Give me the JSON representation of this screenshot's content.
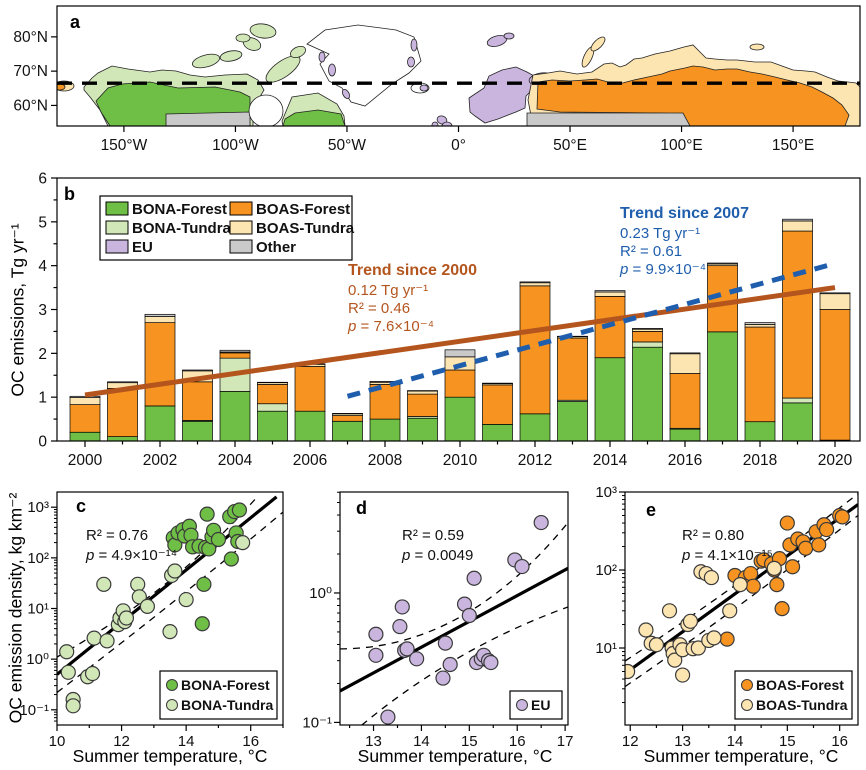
{
  "figure": {
    "panel_labels": {
      "a": "a",
      "b": "b",
      "c": "c",
      "d": "d",
      "e": "e"
    }
  },
  "colors": {
    "bona_forest": "#6FBE45",
    "bona_tundra": "#D2E7B8",
    "eu": "#C9B5DD",
    "boas_forest": "#F79421",
    "boas_tundra": "#FDE5B2",
    "other": "#C9C9C9",
    "trend_2000": "#B4551E",
    "trend_2007": "#1F5EAD"
  },
  "panel_a": {
    "lon_range": [
      -180,
      180
    ],
    "lat_range": [
      54,
      89
    ],
    "dashed_line_lat": 66.5,
    "lon_ticks": [
      {
        "v": -150,
        "label": "150°W"
      },
      {
        "v": -100,
        "label": "100°W"
      },
      {
        "v": -50,
        "label": "50°W"
      },
      {
        "v": 0,
        "label": "0°"
      },
      {
        "v": 50,
        "label": "50°E"
      },
      {
        "v": 100,
        "label": "100°E"
      },
      {
        "v": 150,
        "label": "150°E"
      }
    ],
    "lat_ticks": [
      {
        "v": 80,
        "label": "80°N"
      },
      {
        "v": 70,
        "label": "70°N"
      },
      {
        "v": 60,
        "label": "60°N"
      }
    ],
    "regions": [
      "BONA-Forest",
      "BONA-Tundra",
      "EU",
      "BOAS-Forest",
      "BOAS-Tundra",
      "Other"
    ]
  },
  "chart_data": [
    {
      "id": "b",
      "type": "bar",
      "stacked": true,
      "ylabel": "OC emissions, Tg yr⁻¹",
      "ylim": [
        0,
        6
      ],
      "yticks": [
        0,
        1,
        2,
        3,
        4,
        5,
        6
      ],
      "xticks": [
        2000,
        2002,
        2004,
        2006,
        2008,
        2010,
        2012,
        2014,
        2016,
        2018,
        2020
      ],
      "categories": [
        2000,
        2001,
        2002,
        2003,
        2004,
        2005,
        2006,
        2007,
        2008,
        2009,
        2010,
        2011,
        2012,
        2013,
        2014,
        2015,
        2016,
        2017,
        2018,
        2019,
        2020
      ],
      "series": [
        {
          "name": "BONA-Forest",
          "color_key": "bona_forest",
          "values": [
            0.2,
            0.1,
            0.8,
            0.45,
            1.13,
            0.68,
            0.68,
            0.45,
            0.5,
            0.52,
            1.0,
            0.38,
            0.62,
            0.9,
            1.9,
            2.14,
            0.27,
            2.49,
            0.44,
            0.87,
            0.02
          ]
        },
        {
          "name": "BONA-Tundra",
          "color_key": "bona_tundra",
          "values": [
            0,
            0,
            0,
            0.02,
            0.76,
            0.17,
            0,
            0,
            0,
            0.04,
            0,
            0,
            0,
            0.03,
            0,
            0.12,
            0.02,
            0,
            0,
            0.11,
            0
          ]
        },
        {
          "name": "EU",
          "color_key": "eu",
          "values": [
            0,
            0,
            0,
            0,
            0,
            0,
            0,
            0,
            0,
            0,
            0,
            0,
            0,
            0,
            0,
            0,
            0,
            0,
            0,
            0,
            0
          ]
        },
        {
          "name": "BOAS-Forest",
          "color_key": "boas_forest",
          "values": [
            0.63,
            1.1,
            1.9,
            0.88,
            0.12,
            0.44,
            1.02,
            0.13,
            0.79,
            0.51,
            0.62,
            0.9,
            2.92,
            1.42,
            1.4,
            0.24,
            1.25,
            1.51,
            2.16,
            3.81,
            2.98
          ]
        },
        {
          "name": "BOAS-Tundra",
          "color_key": "boas_tundra",
          "values": [
            0.16,
            0.13,
            0.14,
            0.25,
            0.02,
            0.04,
            0.05,
            0.04,
            0.05,
            0.07,
            0.3,
            0.03,
            0.07,
            0.03,
            0.1,
            0.05,
            0.45,
            0.04,
            0.06,
            0.23,
            0.36
          ]
        },
        {
          "name": "Other",
          "color_key": "other",
          "values": [
            0.03,
            0.02,
            0.05,
            0.02,
            0.04,
            0.01,
            0.01,
            0.01,
            0.02,
            0.01,
            0.16,
            0.01,
            0.02,
            0.01,
            0.03,
            0.02,
            0.02,
            0.02,
            0.04,
            0.04,
            0.02
          ]
        }
      ],
      "trends": [
        {
          "title": "Trend since 2000",
          "slope": "0.12 Tg yr⁻¹",
          "r2": "R² = 0.46",
          "p_italic": "p",
          "p_rest": " = 7.6×10⁻⁴",
          "color": "#B4551E",
          "x1": 2000,
          "y1": 1.05,
          "x2": 2020,
          "y2": 3.5,
          "dashed": false
        },
        {
          "title": "Trend since 2007",
          "slope": "0.23 Tg yr⁻¹",
          "r2": "R² = 0.61",
          "p_italic": "p",
          "p_rest": " = 9.9×10⁻⁴",
          "color": "#1F5EAD",
          "x1": 2007,
          "y1": 1.02,
          "x2": 2020,
          "y2": 4.05,
          "dashed": true
        }
      ]
    },
    {
      "id": "c",
      "type": "scatter",
      "xlabel": "Summer temperature, °C",
      "ylabel": "OC emission density, kg km⁻²",
      "xlim": [
        10,
        17
      ],
      "xticks": [
        10,
        12,
        14,
        16
      ],
      "ylog": true,
      "ylim_exp": [
        -1.3,
        3.3
      ],
      "ytick_exps": [
        -1,
        0,
        1,
        2,
        3
      ],
      "stats": {
        "r2": "R² = 0.76",
        "p_italic": "p",
        "p_rest": " = 4.9×10⁻¹⁴"
      },
      "series": [
        {
          "name": "BONA-Forest",
          "color_key": "bona_forest",
          "points": [
            [
              13.6,
              250
            ],
            [
              13.65,
              180
            ],
            [
              13.75,
              310
            ],
            [
              13.9,
              360
            ],
            [
              13.95,
              270
            ],
            [
              14.1,
              420
            ],
            [
              14.15,
              280
            ],
            [
              14.2,
              165
            ],
            [
              14.4,
              170
            ],
            [
              14.5,
              5
            ],
            [
              14.55,
              30
            ],
            [
              14.6,
              160
            ],
            [
              14.65,
              730
            ],
            [
              14.7,
              150
            ],
            [
              14.8,
              260
            ],
            [
              14.85,
              350
            ],
            [
              15.0,
              230
            ],
            [
              15.35,
              650
            ],
            [
              15.4,
              95
            ],
            [
              15.5,
              820
            ],
            [
              15.55,
              310
            ],
            [
              15.6,
              210
            ],
            [
              15.65,
              880
            ]
          ]
        },
        {
          "name": "BONA-Tundra",
          "color_key": "bona_tundra",
          "points": [
            [
              10.3,
              1.4
            ],
            [
              10.35,
              0.55
            ],
            [
              10.5,
              0.16
            ],
            [
              10.5,
              0.12
            ],
            [
              10.95,
              0.45
            ],
            [
              11.1,
              0.52
            ],
            [
              11.15,
              2.6
            ],
            [
              11.45,
              30
            ],
            [
              11.55,
              2.3
            ],
            [
              11.9,
              4.8
            ],
            [
              11.95,
              6.5
            ],
            [
              12.05,
              9
            ],
            [
              12.1,
              5.5
            ],
            [
              12.15,
              6.5
            ],
            [
              12.5,
              30
            ],
            [
              12.55,
              17
            ],
            [
              12.8,
              11
            ],
            [
              13.5,
              3.5
            ],
            [
              13.55,
              45
            ],
            [
              13.65,
              55
            ],
            [
              14.0,
              15
            ],
            [
              15.75,
              200
            ]
          ]
        }
      ],
      "fit": {
        "x": [
          10,
          16.8
        ],
        "y": [
          0.5,
          1600
        ]
      },
      "ci": {
        "upper": [
          [
            10,
            1.1
          ],
          [
            13.4,
            32
          ],
          [
            16.2,
            1600
          ]
        ],
        "lower": [
          [
            10,
            0.22
          ],
          [
            13.5,
            12
          ],
          [
            17,
            800
          ]
        ]
      }
    },
    {
      "id": "d",
      "type": "scatter",
      "xlabel": "Summer temperature, °C",
      "xlim": [
        12.3,
        17.06
      ],
      "xticks": [
        13,
        14,
        15,
        16,
        17
      ],
      "ylog": true,
      "ylim_exp": [
        -1.02,
        0.78
      ],
      "ytick_exps": [
        -1,
        0
      ],
      "stats": {
        "r2": "R² = 0.59",
        "p_italic": "p",
        "p_rest": " = 0.0049"
      },
      "series": [
        {
          "name": "EU",
          "color_key": "eu",
          "points": [
            [
              13.05,
              0.48
            ],
            [
              13.05,
              0.33
            ],
            [
              13.3,
              0.11
            ],
            [
              13.55,
              0.55
            ],
            [
              13.6,
              0.78
            ],
            [
              13.65,
              0.36
            ],
            [
              13.7,
              0.37
            ],
            [
              13.9,
              0.31
            ],
            [
              14.45,
              0.22
            ],
            [
              14.5,
              0.41
            ],
            [
              14.6,
              0.28
            ],
            [
              14.9,
              0.82
            ],
            [
              15.0,
              0.67
            ],
            [
              15.1,
              1.3
            ],
            [
              15.15,
              0.29
            ],
            [
              15.25,
              0.31
            ],
            [
              15.3,
              0.33
            ],
            [
              15.4,
              0.3
            ],
            [
              15.45,
              0.29
            ],
            [
              15.95,
              1.8
            ],
            [
              16.1,
              1.6
            ],
            [
              16.5,
              3.5
            ]
          ]
        }
      ],
      "fit": {
        "x": [
          12.3,
          17.06
        ],
        "y": [
          0.175,
          1.55
        ]
      },
      "ci": {
        "upper": [
          [
            12.3,
            0.37
          ],
          [
            14.8,
            0.65
          ],
          [
            17.06,
            3.5
          ]
        ],
        "lower": [
          [
            12.75,
            0.095
          ],
          [
            14.8,
            0.32
          ],
          [
            17.06,
            0.78
          ]
        ]
      }
    },
    {
      "id": "e",
      "type": "scatter",
      "xlabel": "Summer temperature, °C",
      "xlim": [
        11.9,
        16.35
      ],
      "xticks": [
        12,
        13,
        14,
        15,
        16
      ],
      "ylog": true,
      "ylim_exp": [
        0.013,
        3.0
      ],
      "ytick_exps": [
        1,
        2,
        3
      ],
      "stats": {
        "r2": "R² = 0.80",
        "p_italic": "p",
        "p_rest": " = 4.1×10⁻¹⁵"
      },
      "series": [
        {
          "name": "BOAS-Forest",
          "color_key": "boas_forest",
          "points": [
            [
              13.85,
              13
            ],
            [
              14.0,
              85
            ],
            [
              14.2,
              80
            ],
            [
              14.3,
              90
            ],
            [
              14.35,
              62
            ],
            [
              14.5,
              130
            ],
            [
              14.55,
              135
            ],
            [
              14.7,
              120
            ],
            [
              14.75,
              100
            ],
            [
              14.8,
              65
            ],
            [
              14.85,
              140
            ],
            [
              14.9,
              32
            ],
            [
              15.0,
              400
            ],
            [
              15.05,
              210
            ],
            [
              15.1,
              110
            ],
            [
              15.2,
              250
            ],
            [
              15.3,
              230
            ],
            [
              15.35,
              190
            ],
            [
              15.55,
              310
            ],
            [
              15.6,
              210
            ],
            [
              15.7,
              380
            ],
            [
              15.75,
              330
            ],
            [
              16.0,
              500
            ],
            [
              16.05,
              480
            ]
          ]
        },
        {
          "name": "BOAS-Tundra",
          "color_key": "boas_tundra",
          "points": [
            [
              11.95,
              5
            ],
            [
              12.3,
              17
            ],
            [
              12.4,
              11.5
            ],
            [
              12.5,
              11
            ],
            [
              12.75,
              30
            ],
            [
              12.8,
              10
            ],
            [
              12.82,
              8.5
            ],
            [
              12.85,
              7
            ],
            [
              12.95,
              11
            ],
            [
              13.0,
              9.5
            ],
            [
              13.0,
              4.5
            ],
            [
              13.1,
              20
            ],
            [
              13.15,
              22
            ],
            [
              13.2,
              9.8
            ],
            [
              13.3,
              10
            ],
            [
              13.35,
              95
            ],
            [
              13.45,
              90
            ],
            [
              13.5,
              12.5
            ],
            [
              13.55,
              80
            ],
            [
              13.6,
              13.5
            ],
            [
              13.9,
              30
            ],
            [
              14.1,
              65
            ],
            [
              14.75,
              105
            ]
          ]
        }
      ],
      "fit": {
        "x": [
          11.9,
          16.35
        ],
        "y": [
          4.7,
          690
        ]
      },
      "ci": {
        "upper": [
          [
            11.9,
            6.8
          ],
          [
            14.15,
            75
          ],
          [
            16.35,
            950
          ]
        ],
        "lower": [
          [
            11.9,
            3.2
          ],
          [
            14.15,
            38
          ],
          [
            16.35,
            500
          ]
        ]
      }
    }
  ]
}
